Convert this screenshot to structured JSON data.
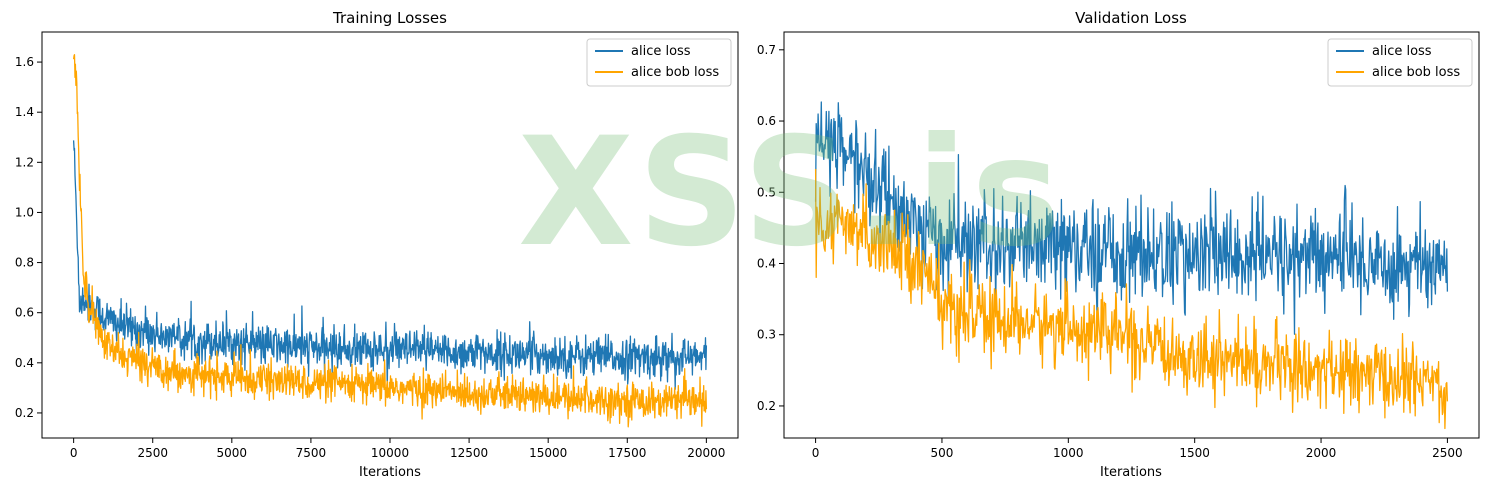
{
  "watermark": "XSS.is",
  "colors": {
    "alice": "#1f77b4",
    "alice_bob": "#ffa500"
  },
  "chart_data": [
    {
      "type": "line",
      "title": "Training Losses",
      "xlabel": "Iterations",
      "ylabel": "",
      "xlim": [
        -1000,
        21000
      ],
      "ylim": [
        0.1,
        1.72
      ],
      "xticks": [
        0,
        2500,
        5000,
        7500,
        10000,
        12500,
        15000,
        17500,
        20000
      ],
      "yticks": [
        0.2,
        0.4,
        0.6,
        0.8,
        1.0,
        1.2,
        1.4,
        1.6
      ],
      "legend": "top-right",
      "grid": false,
      "series": [
        {
          "name": "alice loss",
          "color": "#1f77b4",
          "x": [
            0,
            100,
            200,
            300,
            500,
            1000,
            1500,
            2000,
            2500,
            3000,
            4000,
            5000,
            6000,
            7500,
            10000,
            12500,
            15000,
            17500,
            20000
          ],
          "y": [
            1.3,
            0.95,
            0.62,
            0.66,
            0.63,
            0.58,
            0.55,
            0.53,
            0.52,
            0.5,
            0.49,
            0.48,
            0.47,
            0.46,
            0.45,
            0.44,
            0.43,
            0.42,
            0.42
          ],
          "noise": 0.08
        },
        {
          "name": "alice bob loss",
          "color": "#ffa500",
          "x": [
            0,
            100,
            200,
            300,
            500,
            1000,
            1500,
            2000,
            2500,
            3000,
            4000,
            5000,
            6000,
            7500,
            10000,
            12500,
            15000,
            17500,
            20000
          ],
          "y": [
            1.62,
            1.5,
            1.1,
            0.78,
            0.62,
            0.47,
            0.43,
            0.41,
            0.39,
            0.37,
            0.35,
            0.34,
            0.33,
            0.32,
            0.3,
            0.28,
            0.26,
            0.25,
            0.24
          ],
          "noise": 0.07
        }
      ]
    },
    {
      "type": "line",
      "title": "Validation Loss",
      "xlabel": "Iterations",
      "ylabel": "",
      "xlim": [
        -125,
        2625
      ],
      "ylim": [
        0.155,
        0.725
      ],
      "xticks": [
        0,
        500,
        1000,
        1500,
        2000,
        2500
      ],
      "yticks": [
        0.2,
        0.3,
        0.4,
        0.5,
        0.6,
        0.7
      ],
      "legend": "top-right",
      "grid": false,
      "series": [
        {
          "name": "alice loss",
          "color": "#1f77b4",
          "x": [
            0,
            50,
            100,
            150,
            200,
            300,
            400,
            500,
            750,
            1000,
            1250,
            1500,
            1750,
            2000,
            2250,
            2500
          ],
          "y": [
            0.56,
            0.57,
            0.56,
            0.55,
            0.52,
            0.49,
            0.45,
            0.43,
            0.42,
            0.42,
            0.415,
            0.41,
            0.41,
            0.41,
            0.4,
            0.4
          ],
          "noise": 0.07
        },
        {
          "name": "alice bob loss",
          "color": "#ffa500",
          "x": [
            0,
            100,
            200,
            300,
            400,
            480,
            500,
            750,
            1000,
            1250,
            1260,
            1500,
            1750,
            2000,
            2250,
            2500
          ],
          "y": [
            0.45,
            0.45,
            0.44,
            0.43,
            0.4,
            0.38,
            0.33,
            0.32,
            0.31,
            0.3,
            0.28,
            0.27,
            0.26,
            0.25,
            0.24,
            0.23
          ],
          "noise": 0.05
        }
      ]
    }
  ]
}
